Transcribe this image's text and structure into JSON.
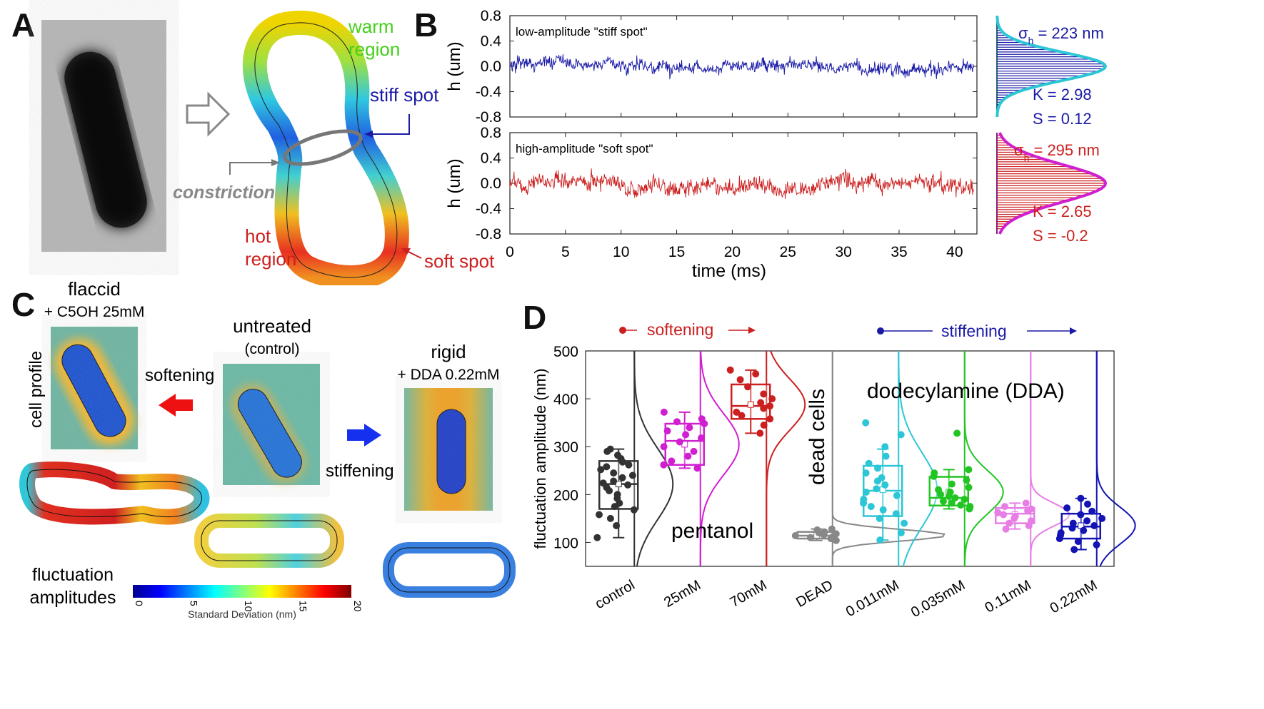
{
  "panels": {
    "a": "A",
    "b": "B",
    "c": "C",
    "d": "D"
  },
  "colors": {
    "blue": "#1a1aa6",
    "red": "#cc1f1f",
    "cyan": "#2cc6d6",
    "magenta": "#d01fd0",
    "green": "#22c422",
    "pink": "#e67ee6",
    "navy": "#1414b4",
    "gray": "#888888",
    "darkred": "#c01010"
  },
  "panel_a": {
    "labels": {
      "warm": "warm",
      "warm_region": "region",
      "stiff": "stiff spot",
      "constriction": "constriction",
      "hot": "hot",
      "hot_region": "region",
      "soft": "soft spot"
    }
  },
  "panel_c": {
    "flaccid": "flaccid",
    "flaccid_sub": "+ C5OH 25mM",
    "untreated": "untreated",
    "untreated_sub": "(control)",
    "rigid": "rigid",
    "rigid_sub": "+ DDA 0.22mM",
    "cell_profile": "cell profile",
    "softening": "softening",
    "stiffening": "stiffening",
    "fluct1": "fluctuation",
    "fluct2": "amplitudes",
    "colorbar_ticks": [
      "0",
      "5",
      "10",
      "15",
      "20"
    ],
    "colorbar_label": "Standard Deviation (nm)"
  },
  "chart_data": [
    {
      "type": "line",
      "title": "low-amplitude \"stiff spot\"",
      "xlabel": "time (ms)",
      "ylabel": "h (um)",
      "xlim": [
        0,
        42
      ],
      "ylim": [
        -0.8,
        0.8
      ],
      "x_ticks": [
        "0",
        "5",
        "10",
        "15",
        "20",
        "25",
        "30",
        "35",
        "40"
      ],
      "y_ticks": [
        "0.8",
        "0.4",
        "0.0",
        "-0.4",
        "-0.8"
      ],
      "series": [
        {
          "name": "stiff spot",
          "color": "#1a1aa6",
          "sigma_nm": 223
        }
      ],
      "histogram": {
        "sigma_label": "σ",
        "sigma_sub": "h",
        "sigma_text": " = 223 nm",
        "K": "K = 2.98",
        "S": "S = 0.12",
        "fit_color": "#2cc6d6"
      }
    },
    {
      "type": "line",
      "title": "high-amplitude \"soft spot\"",
      "xlabel": "time (ms)",
      "ylabel": "h (um)",
      "xlim": [
        0,
        42
      ],
      "ylim": [
        -0.8,
        0.8
      ],
      "x_ticks": [
        "0",
        "5",
        "10",
        "15",
        "20",
        "25",
        "30",
        "35",
        "40"
      ],
      "y_ticks": [
        "0.8",
        "0.4",
        "0.0",
        "-0.4",
        "-0.8"
      ],
      "series": [
        {
          "name": "soft spot",
          "color": "#cc1f1f",
          "sigma_nm": 295
        }
      ],
      "histogram": {
        "sigma_label": "σ",
        "sigma_sub": "h",
        "sigma_text": " = 295 nm",
        "K": "K = 2.65",
        "S": "S = -0.2",
        "fit_color": "#d01fd0"
      }
    },
    {
      "type": "scatter",
      "title": "",
      "ylabel": "fluctuation amplitude (nm)",
      "ylim": [
        50,
        500
      ],
      "y_ticks": [
        100,
        200,
        300,
        400,
        500
      ],
      "categories": [
        "control",
        "25mM",
        "70mM",
        "DEAD",
        "0.011mM",
        "0.035mM",
        "0.11mM",
        "0.22mM"
      ],
      "annotations": {
        "softening": "softening",
        "stiffening": "stiffening",
        "pentanol": "pentanol",
        "dead": "dead cells",
        "dda": "dodecylamine (DDA)"
      },
      "groups": [
        {
          "name": "control",
          "color": "#333333",
          "q1": 170,
          "median": 222,
          "q3": 270,
          "whisk_lo": 110,
          "whisk_hi": 295,
          "mean": 222,
          "points": [
            110,
            135,
            150,
            158,
            168,
            175,
            182,
            192,
            200,
            208,
            215,
            220,
            224,
            228,
            235,
            240,
            245,
            252,
            258,
            262,
            268,
            275,
            282,
            290,
            295
          ]
        },
        {
          "name": "25mM",
          "color": "#d01fd0",
          "q1": 262,
          "median": 312,
          "q3": 348,
          "whisk_lo": 255,
          "whisk_hi": 372,
          "mean": 305,
          "points": [
            255,
            262,
            270,
            280,
            290,
            300,
            310,
            318,
            325,
            333,
            340,
            348,
            352,
            358,
            372
          ]
        },
        {
          "name": "70mM",
          "color": "#cc1f1f",
          "q1": 358,
          "median": 385,
          "q3": 430,
          "whisk_lo": 328,
          "whisk_hi": 460,
          "mean": 388,
          "points": [
            328,
            345,
            358,
            365,
            372,
            380,
            385,
            392,
            400,
            410,
            425,
            440,
            452,
            460
          ]
        },
        {
          "name": "DEAD",
          "color": "#888888",
          "q1": 108,
          "median": 114,
          "q3": 122,
          "whisk_lo": 104,
          "whisk_hi": 128,
          "mean": 115,
          "points": [
            104,
            108,
            110,
            112,
            114,
            116,
            118,
            120,
            122,
            126,
            128
          ]
        },
        {
          "name": "0.011mM",
          "color": "#2cc6d6",
          "q1": 155,
          "median": 208,
          "q3": 260,
          "whisk_lo": 105,
          "whisk_hi": 295,
          "mean": 210,
          "points": [
            105,
            120,
            140,
            150,
            160,
            168,
            175,
            182,
            190,
            198,
            205,
            212,
            220,
            228,
            235,
            245,
            255,
            265,
            280,
            300,
            325,
            350
          ]
        },
        {
          "name": "0.035mM",
          "color": "#22c422",
          "q1": 177,
          "median": 193,
          "q3": 237,
          "whisk_lo": 170,
          "whisk_hi": 252,
          "mean": 205,
          "points": [
            170,
            175,
            178,
            182,
            186,
            190,
            193,
            196,
            200,
            205,
            210,
            215,
            222,
            230,
            238,
            245,
            252,
            328
          ]
        },
        {
          "name": "0.11mM",
          "color": "#e67ee6",
          "q1": 140,
          "median": 160,
          "q3": 172,
          "whisk_lo": 128,
          "whisk_hi": 182,
          "mean": 158,
          "points": [
            128,
            135,
            140,
            145,
            150,
            155,
            158,
            162,
            166,
            170,
            175,
            182
          ]
        },
        {
          "name": "0.22mM",
          "color": "#1414b4",
          "q1": 108,
          "median": 133,
          "q3": 160,
          "whisk_lo": 85,
          "whisk_hi": 192,
          "mean": 135,
          "points": [
            85,
            95,
            102,
            108,
            115,
            120,
            125,
            130,
            135,
            140,
            145,
            150,
            158,
            165,
            172,
            180,
            192
          ]
        }
      ]
    }
  ]
}
